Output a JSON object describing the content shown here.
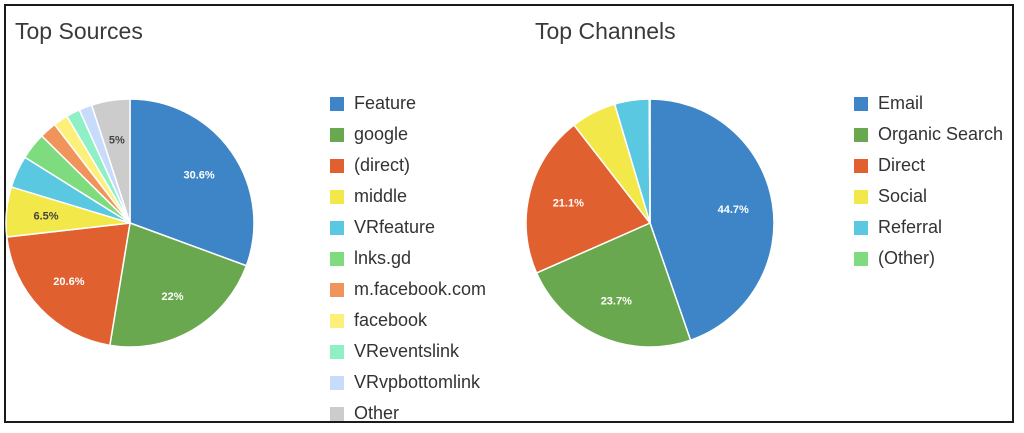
{
  "chart_data": [
    {
      "type": "pie",
      "title": "Top Sources",
      "legend_position": "right",
      "categories": [
        "Feature",
        "google",
        "(direct)",
        "middle",
        "VRfeature",
        "lnks.gd",
        "m.facebook.com",
        "facebook",
        "VReventslink",
        "VRvpbottomlink",
        "Other"
      ],
      "values": [
        30.6,
        22,
        20.6,
        6.5,
        4.2,
        3.5,
        2.2,
        1.9,
        1.8,
        1.7,
        5
      ],
      "labels": [
        "30.6%",
        "22%",
        "20.6%",
        "6.5%",
        "",
        "",
        "",
        "",
        "",
        "",
        "5%"
      ],
      "colors": [
        "#3d85c6",
        "#6aa84f",
        "#e06030",
        "#f3e84a",
        "#5bc8e2",
        "#7edc7e",
        "#f0945c",
        "#fdf07a",
        "#8ff0c6",
        "#c6dcfa",
        "#cccccc"
      ]
    },
    {
      "type": "pie",
      "title": "Top Channels",
      "legend_position": "right",
      "categories": [
        "Email",
        "Organic Search",
        "Direct",
        "Social",
        "Referral",
        "(Other)"
      ],
      "values": [
        44.7,
        23.7,
        21.1,
        5.9,
        4.5,
        0.1
      ],
      "labels": [
        "44.7%",
        "23.7%",
        "21.1%",
        "",
        "",
        ""
      ],
      "colors": [
        "#3d85c6",
        "#6aa84f",
        "#e06030",
        "#f3e84a",
        "#5bc8e2",
        "#7edc7e"
      ]
    }
  ]
}
